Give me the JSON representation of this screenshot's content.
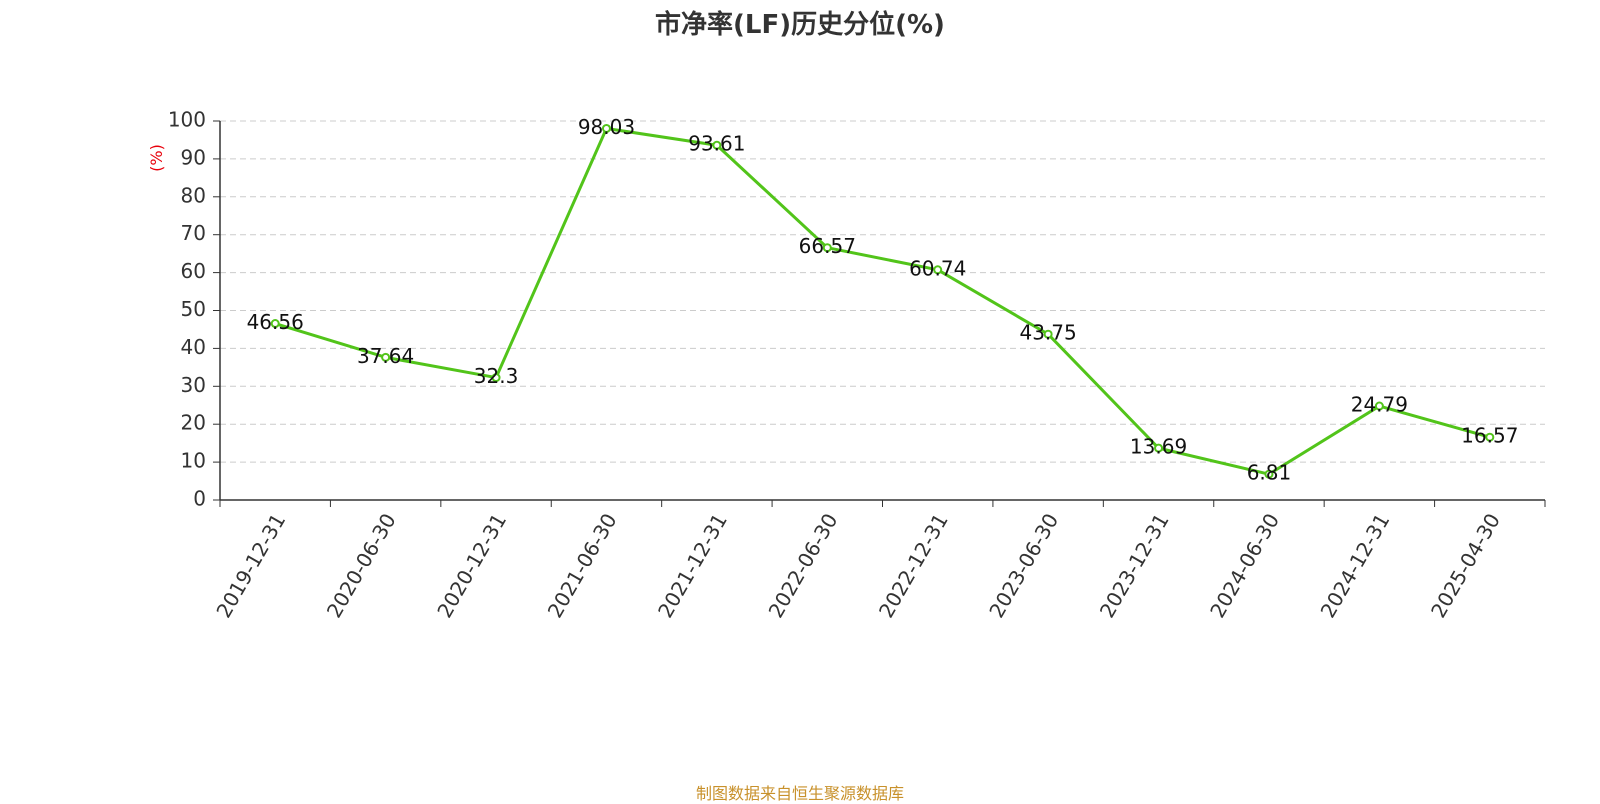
{
  "chart_data": {
    "type": "line",
    "title": "市净率(LF)历史分位(%)",
    "ylabel": "(%)",
    "xlabel": "",
    "x": [
      "2019-12-31",
      "2020-06-30",
      "2020-12-31",
      "2021-06-30",
      "2021-12-31",
      "2022-06-30",
      "2022-12-31",
      "2023-06-30",
      "2023-12-31",
      "2024-06-30",
      "2024-12-31",
      "2025-04-30"
    ],
    "series": [
      {
        "values": [
          46.56,
          37.64,
          32.3,
          98.03,
          93.61,
          66.57,
          60.74,
          43.75,
          13.69,
          6.81,
          24.79,
          16.57
        ]
      }
    ],
    "data_labels": [
      "46.56",
      "37.64",
      "32.3",
      "98.03",
      "93.61",
      "66.57",
      "60.74",
      "43.75",
      "13.69",
      "6.81",
      "24.79",
      "16.57"
    ],
    "ylim": [
      0,
      100
    ],
    "yticks": [
      "0",
      "10",
      "20",
      "30",
      "40",
      "50",
      "60",
      "70",
      "80",
      "90",
      "100"
    ],
    "grid": true,
    "legend": "none",
    "colors": {
      "line": "#52c41a",
      "ylabel": "#e8000b",
      "grid": "#cccccc",
      "axis": "#333333"
    }
  },
  "footer": {
    "source": "制图数据来自恒生聚源数据库"
  }
}
